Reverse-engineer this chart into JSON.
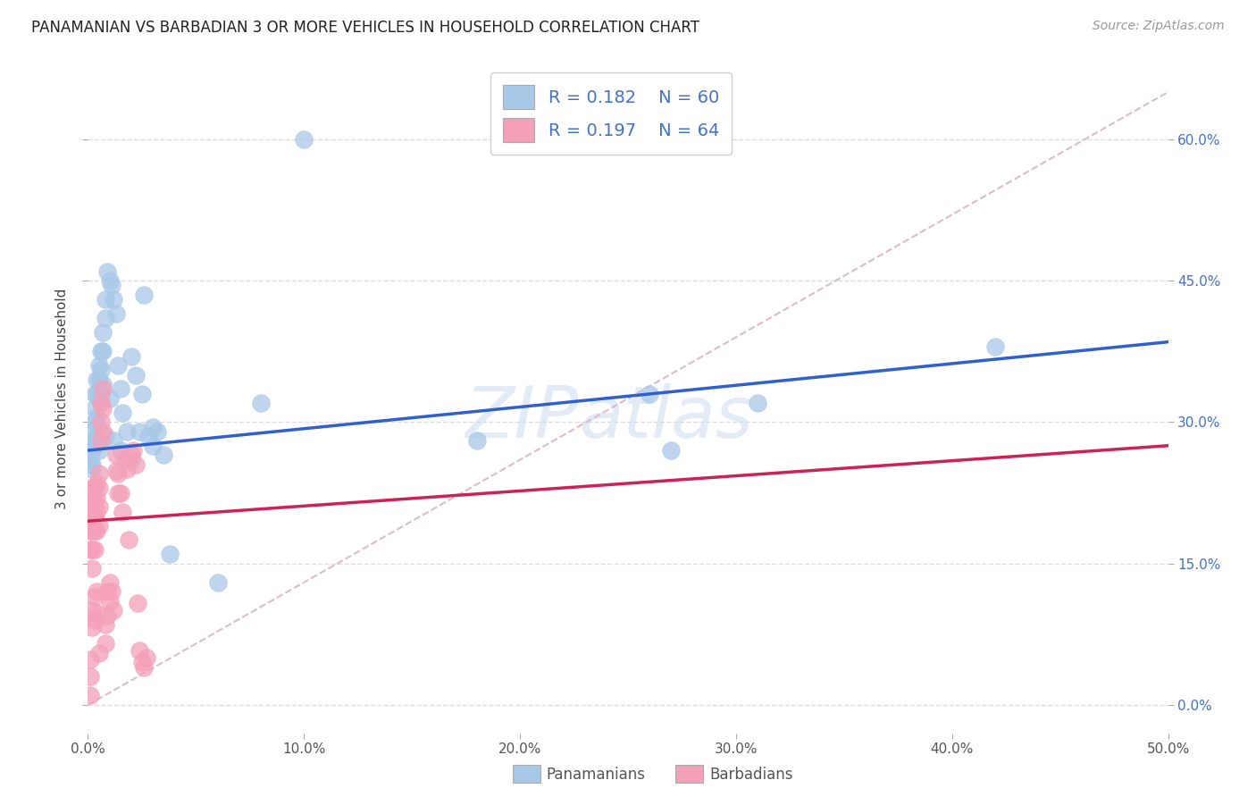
{
  "title": "PANAMANIAN VS BARBADIAN 3 OR MORE VEHICLES IN HOUSEHOLD CORRELATION CHART",
  "source": "Source: ZipAtlas.com",
  "ylabel": "3 or more Vehicles in Household",
  "xlim": [
    0.0,
    0.5
  ],
  "ylim": [
    -0.03,
    0.68
  ],
  "xticks": [
    0.0,
    0.1,
    0.2,
    0.3,
    0.4,
    0.5
  ],
  "yticks": [
    0.0,
    0.15,
    0.3,
    0.45,
    0.6
  ],
  "xtick_labels": [
    "0.0%",
    "10.0%",
    "20.0%",
    "30.0%",
    "40.0%",
    "50.0%"
  ],
  "ytick_labels": [
    "0.0%",
    "15.0%",
    "30.0%",
    "45.0%",
    "60.0%"
  ],
  "blue_color": "#a8c8e8",
  "pink_color": "#f4a0b8",
  "blue_line_color": "#3060cc",
  "pink_line_color": "#cc2255",
  "diag_color": "#ddbbcc",
  "grid_color": "#dddddd",
  "blue_R": 0.182,
  "blue_N": 60,
  "pink_R": 0.197,
  "pink_N": 64,
  "watermark_color": "#ccddf0",
  "pan_x": [
    0.001,
    0.001,
    0.002,
    0.002,
    0.002,
    0.003,
    0.003,
    0.003,
    0.003,
    0.004,
    0.004,
    0.004,
    0.005,
    0.005,
    0.005,
    0.006,
    0.006,
    0.007,
    0.007,
    0.008,
    0.008,
    0.009,
    0.01,
    0.011,
    0.012,
    0.013,
    0.014,
    0.015,
    0.016,
    0.018,
    0.02,
    0.022,
    0.024,
    0.026,
    0.028,
    0.03,
    0.032,
    0.035,
    0.038,
    0.002,
    0.003,
    0.004,
    0.005,
    0.006,
    0.007,
    0.008,
    0.01,
    0.012,
    0.015,
    0.02,
    0.025,
    0.03,
    0.06,
    0.08,
    0.1,
    0.18,
    0.26,
    0.31,
    0.27,
    0.42
  ],
  "pan_y": [
    0.28,
    0.26,
    0.29,
    0.27,
    0.25,
    0.33,
    0.315,
    0.3,
    0.28,
    0.345,
    0.33,
    0.305,
    0.36,
    0.345,
    0.325,
    0.375,
    0.355,
    0.395,
    0.375,
    0.43,
    0.41,
    0.46,
    0.45,
    0.445,
    0.43,
    0.415,
    0.36,
    0.335,
    0.31,
    0.29,
    0.37,
    0.35,
    0.29,
    0.435,
    0.285,
    0.275,
    0.29,
    0.265,
    0.16,
    0.255,
    0.275,
    0.285,
    0.27,
    0.33,
    0.34,
    0.285,
    0.325,
    0.28,
    0.27,
    0.26,
    0.33,
    0.295,
    0.13,
    0.32,
    0.6,
    0.28,
    0.33,
    0.32,
    0.27,
    0.38
  ],
  "bar_x": [
    0.001,
    0.001,
    0.001,
    0.001,
    0.002,
    0.002,
    0.002,
    0.002,
    0.002,
    0.002,
    0.003,
    0.003,
    0.003,
    0.003,
    0.003,
    0.004,
    0.004,
    0.004,
    0.004,
    0.005,
    0.005,
    0.005,
    0.005,
    0.006,
    0.006,
    0.006,
    0.007,
    0.007,
    0.007,
    0.008,
    0.008,
    0.009,
    0.009,
    0.01,
    0.01,
    0.011,
    0.012,
    0.013,
    0.014,
    0.015,
    0.016,
    0.017,
    0.018,
    0.019,
    0.02,
    0.021,
    0.022,
    0.023,
    0.024,
    0.025,
    0.026,
    0.027,
    0.013,
    0.014,
    0.002,
    0.002,
    0.003,
    0.003,
    0.004,
    0.004,
    0.005,
    0.001,
    0.001,
    0.001
  ],
  "bar_y": [
    0.215,
    0.2,
    0.185,
    0.165,
    0.23,
    0.215,
    0.2,
    0.185,
    0.165,
    0.145,
    0.23,
    0.215,
    0.2,
    0.185,
    0.165,
    0.235,
    0.22,
    0.205,
    0.185,
    0.245,
    0.23,
    0.21,
    0.19,
    0.32,
    0.3,
    0.28,
    0.335,
    0.315,
    0.29,
    0.085,
    0.065,
    0.12,
    0.095,
    0.13,
    0.11,
    0.12,
    0.1,
    0.265,
    0.245,
    0.225,
    0.205,
    0.26,
    0.25,
    0.175,
    0.265,
    0.27,
    0.255,
    0.108,
    0.058,
    0.045,
    0.04,
    0.05,
    0.248,
    0.225,
    0.1,
    0.082,
    0.115,
    0.09,
    0.12,
    0.098,
    0.055,
    0.03,
    0.01,
    0.048
  ],
  "blue_line_x0": 0.0,
  "blue_line_y0": 0.27,
  "blue_line_x1": 0.5,
  "blue_line_y1": 0.385,
  "pink_line_x0": 0.0,
  "pink_line_y0": 0.195,
  "pink_line_x1": 0.5,
  "pink_line_y1": 0.275
}
